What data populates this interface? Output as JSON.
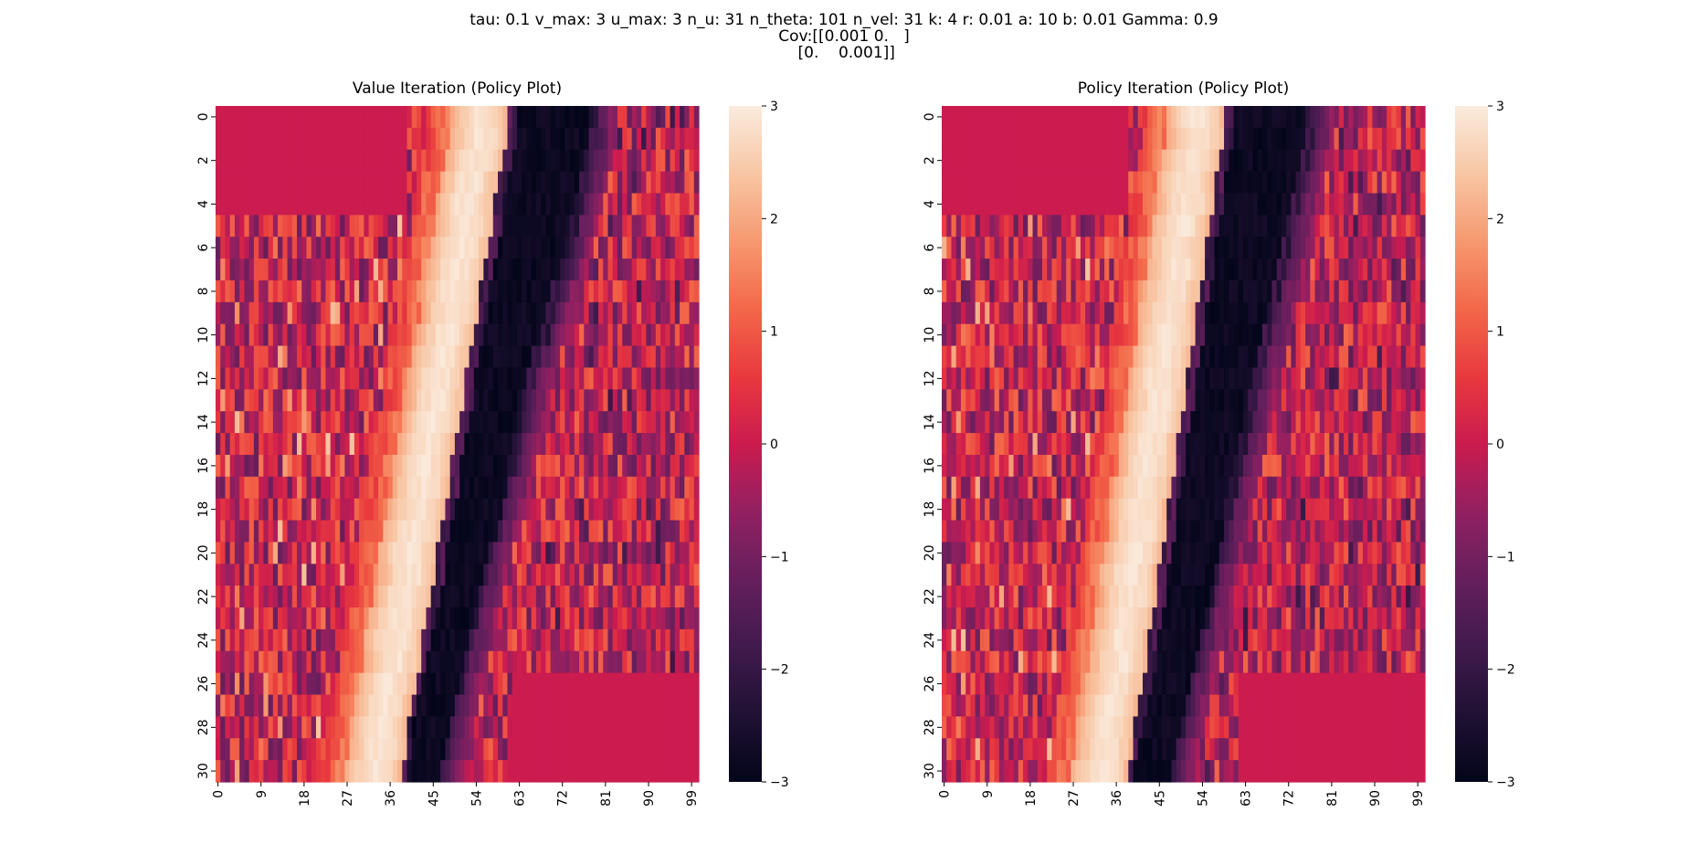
{
  "figure": {
    "suptitle_lines": [
      "tau: 0.1 v_max: 3 u_max: 3 n_u: 31 n_theta: 101 n_vel: 31 k: 4 r: 0.01 a: 10 b: 0.01 Gamma: 0.9",
      "Cov:[[0.001 0.   ]",
      " [0.    0.001]]"
    ]
  },
  "chart_data": [
    {
      "type": "heatmap",
      "title": "Value Iteration (Policy Plot)",
      "xlabel": "",
      "ylabel": "",
      "n_cols": 101,
      "n_rows": 31,
      "xticks": [
        0,
        9,
        18,
        27,
        36,
        45,
        54,
        63,
        72,
        81,
        90,
        99
      ],
      "yticks": [
        0,
        2,
        4,
        6,
        8,
        10,
        12,
        14,
        16,
        18,
        20,
        22,
        24,
        26,
        28,
        30
      ],
      "colorbar": {
        "vmin": -3,
        "vmax": 3,
        "ticks": [
          3,
          2,
          1,
          0,
          -1,
          -2,
          -3
        ]
      },
      "bands": {
        "bright_start_col": [
          49,
          49,
          48,
          47,
          46,
          46,
          45,
          44,
          43,
          43,
          42,
          41,
          40,
          40,
          39,
          38,
          37,
          37,
          36,
          35,
          34,
          34,
          33,
          32,
          31,
          31,
          30,
          29,
          28,
          28,
          27
        ],
        "bright_end_col": [
          61,
          61,
          60,
          59,
          58,
          58,
          57,
          56,
          55,
          55,
          54,
          53,
          52,
          52,
          51,
          50,
          49,
          49,
          48,
          47,
          46,
          46,
          45,
          44,
          43,
          43,
          42,
          41,
          40,
          40,
          39
        ],
        "dark_end_col": [
          80,
          80,
          79,
          78,
          77,
          76,
          75,
          74,
          72,
          71,
          70,
          68,
          67,
          66,
          65,
          64,
          63,
          62,
          61,
          60,
          58,
          57,
          56,
          55,
          54,
          53,
          52,
          51,
          50,
          49,
          48
        ],
        "top_left_flat_rows": 5,
        "top_left_flat_cols": 40,
        "bottom_right_flat_rows": 5,
        "bottom_right_flat_start_col": 62
      }
    },
    {
      "type": "heatmap",
      "title": "Policy Iteration (Policy Plot)",
      "xlabel": "",
      "ylabel": "",
      "n_cols": 101,
      "n_rows": 31,
      "xticks": [
        0,
        9,
        18,
        27,
        36,
        45,
        54,
        63,
        72,
        81,
        90,
        99
      ],
      "yticks": [
        0,
        2,
        4,
        6,
        8,
        10,
        12,
        14,
        16,
        18,
        20,
        22,
        24,
        26,
        28,
        30
      ],
      "colorbar": {
        "vmin": -3,
        "vmax": 3,
        "ticks": [
          3,
          2,
          1,
          0,
          -1,
          -2,
          -3
        ]
      },
      "bands": {
        "bright_start_col": [
          47,
          47,
          46,
          45,
          45,
          44,
          43,
          43,
          42,
          41,
          41,
          40,
          39,
          39,
          38,
          37,
          37,
          36,
          35,
          35,
          34,
          33,
          33,
          32,
          31,
          31,
          30,
          29,
          28,
          28,
          27
        ],
        "bright_end_col": [
          59,
          59,
          58,
          57,
          57,
          56,
          55,
          55,
          54,
          53,
          53,
          52,
          51,
          51,
          50,
          49,
          49,
          48,
          47,
          47,
          46,
          45,
          45,
          44,
          43,
          43,
          42,
          41,
          40,
          40,
          39
        ],
        "dark_end_col": [
          78,
          78,
          77,
          76,
          75,
          74,
          73,
          72,
          71,
          70,
          69,
          68,
          67,
          66,
          65,
          64,
          63,
          62,
          61,
          60,
          59,
          58,
          57,
          56,
          55,
          54,
          53,
          52,
          51,
          50,
          49
        ],
        "top_left_flat_rows": 5,
        "top_left_flat_cols": 39,
        "bottom_right_flat_rows": 5,
        "bottom_right_flat_start_col": 62
      }
    }
  ]
}
